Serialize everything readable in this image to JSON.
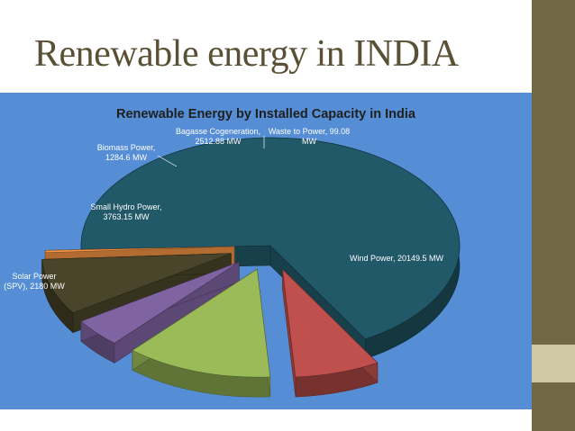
{
  "slide": {
    "title": "Renewable energy in INDIA",
    "colors": {
      "band": "#726843",
      "accent": "#cfc8a4",
      "panel": "#558ed5",
      "title": "#5a5035"
    }
  },
  "chart_data": {
    "type": "pie",
    "style": "3d-exploded",
    "title": "Renewable Energy by Installed Capacity in India",
    "slices": [
      {
        "name": "Wind Power",
        "value": 20149.5,
        "unit": "MW",
        "color": "#215968",
        "label_lines": [
          "Wind Power, 20149.5 MW"
        ]
      },
      {
        "name": "Solar Power (SPV)",
        "value": 2180,
        "unit": "MW",
        "color": "#c0504d",
        "label_lines": [
          "Solar Power",
          "(SPV), 2180 MW"
        ]
      },
      {
        "name": "Small Hydro Power",
        "value": 3763.15,
        "unit": "MW",
        "color": "#9bbb59",
        "label_lines": [
          "Small Hydro Power,",
          "3763.15 MW"
        ]
      },
      {
        "name": "Biomass Power",
        "value": 1284.6,
        "unit": "MW",
        "color": "#8064a2",
        "label_lines": [
          "Biomass Power,",
          "1284.6 MW"
        ]
      },
      {
        "name": "Bagasse Cogeneration",
        "value": 2512.88,
        "unit": "MW",
        "color": "#4a452a",
        "label_lines": [
          "Bagasse Cogeneration,",
          "2512.88 MW"
        ]
      },
      {
        "name": "Waste to Power",
        "value": 99.08,
        "unit": "MW",
        "color": "#f79646",
        "label_lines": [
          "Waste to Power, 99.08",
          "MW"
        ]
      }
    ]
  }
}
